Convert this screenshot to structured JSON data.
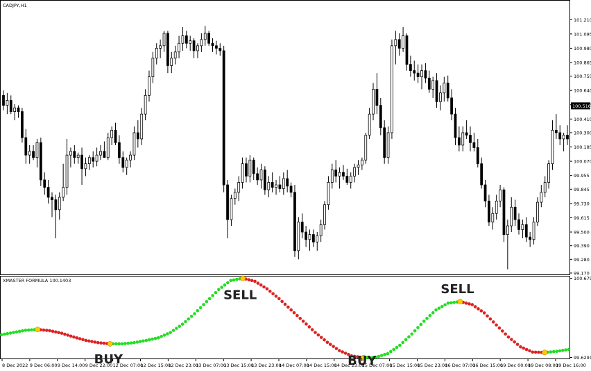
{
  "chart_data": [
    {
      "type": "candlestick",
      "title": "CADJPY,H1",
      "ylim": [
        99.17,
        101.29
      ],
      "y_ticks": [
        "101.210",
        "101.095",
        "100.980",
        "100.865",
        "100.755",
        "100.640",
        "100.525",
        "100.410",
        "100.300",
        "100.185",
        "100.070",
        "99.955",
        "99.845",
        "99.730",
        "99.615",
        "99.500",
        "99.390",
        "99.280",
        "99.170"
      ],
      "current_price": "100.516",
      "colors": {
        "candle": "#000000",
        "price_box": "#000000"
      },
      "candles": [
        [
          100.6,
          100.64,
          100.48,
          100.52
        ],
        [
          100.52,
          100.62,
          100.45,
          100.56
        ],
        [
          100.56,
          100.6,
          100.45,
          100.47
        ],
        [
          100.47,
          100.53,
          100.4,
          100.5
        ],
        [
          100.5,
          100.52,
          100.42,
          100.47
        ],
        [
          100.47,
          100.5,
          100.22,
          100.26
        ],
        [
          100.26,
          100.33,
          100.05,
          100.12
        ],
        [
          100.12,
          100.2,
          100.05,
          100.15
        ],
        [
          100.15,
          100.2,
          100.08,
          100.1
        ],
        [
          100.1,
          100.25,
          100.02,
          100.22
        ],
        [
          100.22,
          100.26,
          99.87,
          99.92
        ],
        [
          99.92,
          99.98,
          99.8,
          99.86
        ],
        [
          99.86,
          99.92,
          99.73,
          99.78
        ],
        [
          99.78,
          99.82,
          99.62,
          99.76
        ],
        [
          99.76,
          99.8,
          99.45,
          99.68
        ],
        [
          99.68,
          99.82,
          99.6,
          99.78
        ],
        [
          99.78,
          100.05,
          99.75,
          99.86
        ],
        [
          99.86,
          100.25,
          99.8,
          100.12
        ],
        [
          100.12,
          100.18,
          100.02,
          100.15
        ],
        [
          100.15,
          100.2,
          100.05,
          100.1
        ],
        [
          100.1,
          100.14,
          100.05,
          100.12
        ],
        [
          100.12,
          100.18,
          99.88,
          100.01
        ],
        [
          100.01,
          100.1,
          99.95,
          100.05
        ],
        [
          100.05,
          100.12,
          100.0,
          100.1
        ],
        [
          100.1,
          100.15,
          100.02,
          100.07
        ],
        [
          100.07,
          100.18,
          100.03,
          100.12
        ],
        [
          100.12,
          100.2,
          100.08,
          100.15
        ],
        [
          100.15,
          100.23,
          100.1,
          100.1
        ],
        [
          100.1,
          100.3,
          100.08,
          100.26
        ],
        [
          100.26,
          100.35,
          100.2,
          100.32
        ],
        [
          100.32,
          100.38,
          100.2,
          100.22
        ],
        [
          100.22,
          100.28,
          100.05,
          100.1
        ],
        [
          100.1,
          100.15,
          99.98,
          100.02
        ],
        [
          100.02,
          100.1,
          99.96,
          100.08
        ],
        [
          100.08,
          100.15,
          100.02,
          100.12
        ],
        [
          100.12,
          100.35,
          100.08,
          100.3
        ],
        [
          100.3,
          100.4,
          100.18,
          100.25
        ],
        [
          100.25,
          100.5,
          100.2,
          100.45
        ],
        [
          100.45,
          100.65,
          100.4,
          100.6
        ],
        [
          100.6,
          100.8,
          100.55,
          100.75
        ],
        [
          100.75,
          100.95,
          100.7,
          100.9
        ],
        [
          100.9,
          101.02,
          100.85,
          100.98
        ],
        [
          100.98,
          101.05,
          100.9,
          101.0
        ],
        [
          101.0,
          101.12,
          100.95,
          101.1
        ],
        [
          101.1,
          101.12,
          100.78,
          100.84
        ],
        [
          100.84,
          100.95,
          100.78,
          100.9
        ],
        [
          100.9,
          101.0,
          100.85,
          100.95
        ],
        [
          100.95,
          101.08,
          100.9,
          101.02
        ],
        [
          101.02,
          101.15,
          100.96,
          101.08
        ],
        [
          101.08,
          101.12,
          100.98,
          101.02
        ],
        [
          101.02,
          101.08,
          100.96,
          101.04
        ],
        [
          101.04,
          101.06,
          100.9,
          100.96
        ],
        [
          100.96,
          101.02,
          100.9,
          101.0
        ],
        [
          101.0,
          101.1,
          100.95,
          101.05
        ],
        [
          101.05,
          101.16,
          101.0,
          101.1
        ],
        [
          101.1,
          101.12,
          101.0,
          101.02
        ],
        [
          101.02,
          101.06,
          100.95,
          101.0
        ],
        [
          101.0,
          101.04,
          100.93,
          100.98
        ],
        [
          100.98,
          101.02,
          100.92,
          100.96
        ],
        [
          100.96,
          101.0,
          99.82,
          99.88
        ],
        [
          99.88,
          99.92,
          99.45,
          99.6
        ],
        [
          99.6,
          99.8,
          99.55,
          99.77
        ],
        [
          99.77,
          99.85,
          99.72,
          99.82
        ],
        [
          99.82,
          99.95,
          99.75,
          99.9
        ],
        [
          99.9,
          100.1,
          99.85,
          100.05
        ],
        [
          100.05,
          100.1,
          99.9,
          99.95
        ],
        [
          99.95,
          100.12,
          99.9,
          100.08
        ],
        [
          100.08,
          100.1,
          99.92,
          99.97
        ],
        [
          99.97,
          100.02,
          99.88,
          99.92
        ],
        [
          99.92,
          100.05,
          99.85,
          100.0
        ],
        [
          100.0,
          100.03,
          99.8,
          99.84
        ],
        [
          99.84,
          99.95,
          99.78,
          99.9
        ],
        [
          99.9,
          99.98,
          99.82,
          99.86
        ],
        [
          99.86,
          99.92,
          99.8,
          99.88
        ],
        [
          99.88,
          99.95,
          99.82,
          99.85
        ],
        [
          99.85,
          99.98,
          99.8,
          99.93
        ],
        [
          99.93,
          100.0,
          99.82,
          99.87
        ],
        [
          99.87,
          99.9,
          99.78,
          99.82
        ],
        [
          99.82,
          99.88,
          99.3,
          99.35
        ],
        [
          99.35,
          99.62,
          99.28,
          99.58
        ],
        [
          99.58,
          99.65,
          99.45,
          99.5
        ],
        [
          99.5,
          99.55,
          99.38,
          99.44
        ],
        [
          99.44,
          99.52,
          99.35,
          99.48
        ],
        [
          99.48,
          99.52,
          99.38,
          99.42
        ],
        [
          99.42,
          99.5,
          99.35,
          99.47
        ],
        [
          99.47,
          99.6,
          99.42,
          99.56
        ],
        [
          99.56,
          99.75,
          99.52,
          99.72
        ],
        [
          99.72,
          99.95,
          99.68,
          99.9
        ],
        [
          99.9,
          100.05,
          99.85,
          100.0
        ],
        [
          100.0,
          100.08,
          99.9,
          99.95
        ],
        [
          99.95,
          100.02,
          99.85,
          99.98
        ],
        [
          99.98,
          100.04,
          99.92,
          99.95
        ],
        [
          99.95,
          100.01,
          99.88,
          99.9
        ],
        [
          99.9,
          99.98,
          99.85,
          99.95
        ],
        [
          99.95,
          100.05,
          99.9,
          100.02
        ],
        [
          100.02,
          100.08,
          99.96,
          100.04
        ],
        [
          100.04,
          100.1,
          100.0,
          100.08
        ],
        [
          100.08,
          100.3,
          100.05,
          100.28
        ],
        [
          100.28,
          100.5,
          100.25,
          100.45
        ],
        [
          100.45,
          100.7,
          100.4,
          100.65
        ],
        [
          100.65,
          100.78,
          100.45,
          100.52
        ],
        [
          100.52,
          100.58,
          100.28,
          100.34
        ],
        [
          100.34,
          100.4,
          100.05,
          100.1
        ],
        [
          100.1,
          100.35,
          100.05,
          100.3
        ],
        [
          100.3,
          101.05,
          100.25,
          101.0
        ],
        [
          101.0,
          101.12,
          100.85,
          101.05
        ],
        [
          101.05,
          101.1,
          100.92,
          100.98
        ],
        [
          100.98,
          101.15,
          100.95,
          101.08
        ],
        [
          101.08,
          101.1,
          100.8,
          100.85
        ],
        [
          100.85,
          100.92,
          100.75,
          100.8
        ],
        [
          100.8,
          100.88,
          100.72,
          100.78
        ],
        [
          100.78,
          100.85,
          100.7,
          100.75
        ],
        [
          100.75,
          100.85,
          100.65,
          100.8
        ],
        [
          100.8,
          100.86,
          100.7,
          100.74
        ],
        [
          100.74,
          100.8,
          100.62,
          100.65
        ],
        [
          100.65,
          100.75,
          100.58,
          100.72
        ],
        [
          100.72,
          100.78,
          100.5,
          100.55
        ],
        [
          100.55,
          100.68,
          100.48,
          100.62
        ],
        [
          100.62,
          100.75,
          100.55,
          100.7
        ],
        [
          100.7,
          100.76,
          100.55,
          100.58
        ],
        [
          100.58,
          100.65,
          100.4,
          100.45
        ],
        [
          100.45,
          100.5,
          100.2,
          100.26
        ],
        [
          100.26,
          100.35,
          100.15,
          100.2
        ],
        [
          100.2,
          100.35,
          100.15,
          100.3
        ],
        [
          100.3,
          100.4,
          100.25,
          100.28
        ],
        [
          100.28,
          100.35,
          100.15,
          100.22
        ],
        [
          100.22,
          100.3,
          100.15,
          100.18
        ],
        [
          100.18,
          100.25,
          100.02,
          100.05
        ],
        [
          100.05,
          100.1,
          99.85,
          99.88
        ],
        [
          99.88,
          99.92,
          99.7,
          99.75
        ],
        [
          99.75,
          99.8,
          99.55,
          99.58
        ],
        [
          99.58,
          99.7,
          99.52,
          99.65
        ],
        [
          99.65,
          99.8,
          99.6,
          99.75
        ],
        [
          99.75,
          99.88,
          99.7,
          99.84
        ],
        [
          99.84,
          99.86,
          99.42,
          99.48
        ],
        [
          99.48,
          99.6,
          99.2,
          99.55
        ],
        [
          99.55,
          99.78,
          99.5,
          99.7
        ],
        [
          99.7,
          99.76,
          99.55,
          99.6
        ],
        [
          99.6,
          99.65,
          99.48,
          99.52
        ],
        [
          99.52,
          99.6,
          99.45,
          99.56
        ],
        [
          99.56,
          99.62,
          99.42,
          99.46
        ],
        [
          99.46,
          99.5,
          99.38,
          99.44
        ],
        [
          99.44,
          99.62,
          99.4,
          99.58
        ],
        [
          99.58,
          99.78,
          99.55,
          99.74
        ],
        [
          99.74,
          99.88,
          99.7,
          99.82
        ],
        [
          99.82,
          99.95,
          99.78,
          99.9
        ],
        [
          99.9,
          100.08,
          99.85,
          100.05
        ],
        [
          100.05,
          100.4,
          100.0,
          100.32
        ],
        [
          100.32,
          100.45,
          100.25,
          100.3
        ],
        [
          100.3,
          100.36,
          100.2,
          100.25
        ],
        [
          100.25,
          100.3,
          100.15,
          100.28
        ],
        [
          100.28,
          100.36,
          100.2,
          100.25
        ]
      ]
    },
    {
      "type": "line",
      "title": "XMASTER FORMULA 100.1403",
      "ylim": [
        99.615,
        100.685
      ],
      "y_ticks": [
        "100.6799",
        "99.6291"
      ],
      "colors": {
        "up": "#22dd22",
        "down": "#dd2222",
        "turn_marker": "#ffcc00"
      },
      "series": [
        {
          "values": [
            99.93,
            99.96,
            99.99,
            100.0,
            99.985,
            99.95,
            99.9,
            99.855,
            99.825,
            99.81,
            99.81,
            99.825,
            99.855,
            99.89,
            99.96,
            100.07,
            100.21,
            100.37,
            100.53,
            100.65,
            100.68,
            100.64,
            100.54,
            100.41,
            100.26,
            100.11,
            99.96,
            99.83,
            99.72,
            99.65,
            99.625,
            99.63,
            99.68,
            99.79,
            99.94,
            100.11,
            100.26,
            100.35,
            100.37,
            100.33,
            100.22,
            100.06,
            99.9,
            99.77,
            99.7,
            99.695,
            99.71,
            99.735
          ],
          "direction": [
            "up",
            "up",
            "up",
            "turn",
            "down",
            "down",
            "down",
            "down",
            "down",
            "turn",
            "up",
            "up",
            "up",
            "up",
            "up",
            "up",
            "up",
            "up",
            "up",
            "up",
            "turn",
            "down",
            "down",
            "down",
            "down",
            "down",
            "down",
            "down",
            "down",
            "down",
            "turn",
            "up",
            "up",
            "up",
            "up",
            "up",
            "up",
            "up",
            "turn",
            "down",
            "down",
            "down",
            "down",
            "down",
            "down",
            "turn",
            "up",
            "up"
          ]
        }
      ],
      "annotations": [
        {
          "text": "BUY"
        },
        {
          "text": "SELL"
        },
        {
          "text": "BUY"
        },
        {
          "text": "SELL"
        }
      ]
    }
  ],
  "x_axis": {
    "tick_labels": [
      "8 Dec 2022",
      "9 Dec 06:00",
      "9 Dec 14:00",
      "9 Dec 22:00",
      "12 Dec 07:00",
      "12 Dec 15:00",
      "12 Dec 23:00",
      "13 Dec 07:00",
      "13 Dec 15:00",
      "13 Dec 23:00",
      "14 Dec 07:00",
      "14 Dec 15:00",
      "14 Dec 23:00",
      "15 Dec 07:00",
      "15 Dec 15:00",
      "15 Dec 23:00",
      "16 Dec 07:00",
      "16 Dec 15:00",
      "19 Dec 00:00",
      "19 Dec 08:00",
      "19 Dec 16:00"
    ]
  }
}
